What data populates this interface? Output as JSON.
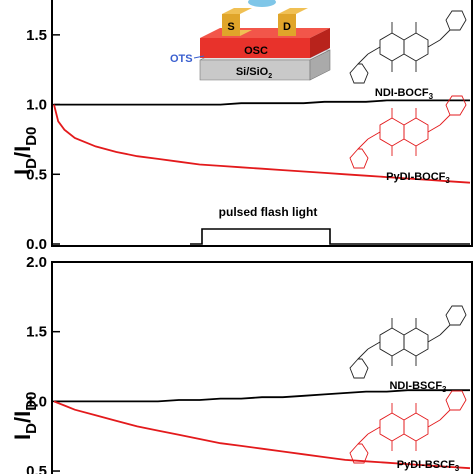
{
  "chart_data": [
    {
      "type": "line",
      "panel": "top",
      "ylabel_main": "I",
      "ylabel_sub1": "D",
      "ylabel_mid": "/I",
      "ylabel_sub2": "D0",
      "ylim": [
        0.0,
        1.75
      ],
      "yticks": [
        "0.0",
        "0.5",
        "1.0",
        "1.5"
      ],
      "series": [
        {
          "name": "NDI-BOCF3",
          "color": "#000000",
          "x": [
            0,
            5,
            10,
            20,
            30,
            40,
            50,
            60,
            70,
            80,
            90,
            100,
            110,
            120,
            130,
            140,
            150,
            160,
            170,
            180,
            190,
            200
          ],
          "values": [
            1.0,
            1.0,
            1.0,
            1.0,
            1.0,
            1.0,
            1.0,
            1.0,
            1.0,
            1.0,
            1.01,
            1.01,
            1.01,
            1.01,
            1.02,
            1.02,
            1.02,
            1.03,
            1.03,
            1.03,
            1.03,
            1.03
          ]
        },
        {
          "name": "PyDI-BOCF3",
          "color": "#e31a1c",
          "x": [
            0,
            2,
            5,
            10,
            20,
            30,
            40,
            50,
            60,
            70,
            80,
            90,
            100,
            110,
            120,
            130,
            140,
            150,
            160,
            170,
            180,
            190,
            200
          ],
          "values": [
            1.0,
            0.88,
            0.82,
            0.76,
            0.7,
            0.66,
            0.63,
            0.61,
            0.59,
            0.57,
            0.56,
            0.55,
            0.54,
            0.53,
            0.52,
            0.51,
            0.5,
            0.49,
            0.48,
            0.47,
            0.46,
            0.45,
            0.44
          ]
        }
      ],
      "annotation": "pulsed flash light",
      "labels": [
        "NDI-BOCF",
        "PyDI-BOCF"
      ],
      "label_subscript": "3",
      "device": {
        "s": "S",
        "d": "D",
        "osc": "OSC",
        "ots": "OTS",
        "substrate": "Si/SiO",
        "substrate_sub": "2"
      }
    },
    {
      "type": "line",
      "panel": "bottom",
      "ylabel_main": "I",
      "ylabel_sub1": "D",
      "ylabel_mid": "/I",
      "ylabel_sub2": "D0",
      "ylim": [
        0.45,
        2.0
      ],
      "yticks": [
        "0.5",
        "1.0",
        "1.5",
        "2.0"
      ],
      "series": [
        {
          "name": "NDI-BSCF3",
          "color": "#000000",
          "x": [
            0,
            10,
            20,
            30,
            40,
            50,
            60,
            70,
            80,
            90,
            100,
            110,
            120,
            130,
            140,
            150,
            160,
            170,
            180,
            190,
            200
          ],
          "values": [
            1.0,
            1.0,
            1.0,
            1.0,
            1.0,
            1.0,
            1.01,
            1.01,
            1.02,
            1.02,
            1.03,
            1.03,
            1.04,
            1.05,
            1.06,
            1.07,
            1.07,
            1.08,
            1.08,
            1.08,
            1.08
          ]
        },
        {
          "name": "PyDI-BSCF3",
          "color": "#e31a1c",
          "x": [
            0,
            5,
            10,
            20,
            30,
            40,
            50,
            60,
            70,
            80,
            90,
            100,
            110,
            120,
            130,
            140,
            150,
            160,
            170,
            180,
            190,
            200
          ],
          "values": [
            1.0,
            0.97,
            0.94,
            0.9,
            0.86,
            0.82,
            0.79,
            0.76,
            0.73,
            0.7,
            0.68,
            0.66,
            0.64,
            0.62,
            0.6,
            0.58,
            0.57,
            0.56,
            0.55,
            0.54,
            0.53,
            0.52
          ]
        }
      ],
      "labels": [
        "NDI-BSCF",
        "PyDI-BSCF"
      ],
      "label_subscript": "3"
    }
  ],
  "colors": {
    "ndi": "#000000",
    "pydi": "#e31a1c",
    "osc": "#e8322b",
    "ots": "#3a5fcf",
    "substrate": "#c9c9c9",
    "electrode": "#e0a52a"
  }
}
